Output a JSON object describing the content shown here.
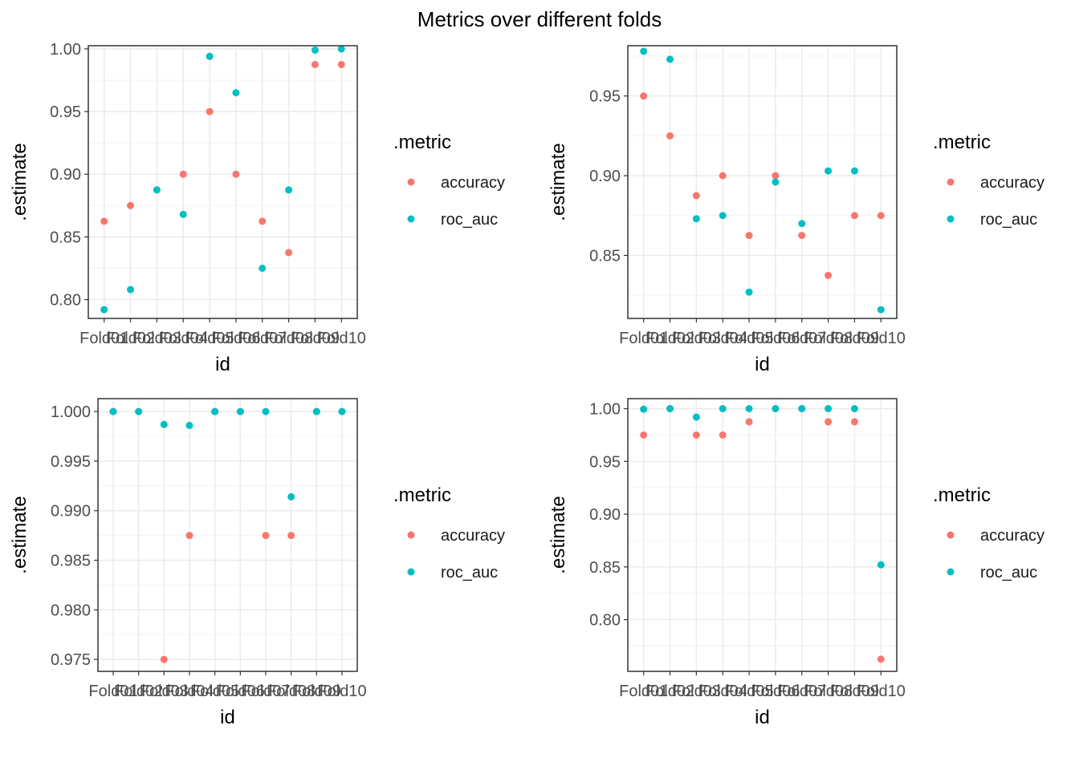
{
  "title": "Metrics over different folds",
  "colors": {
    "accuracy": "#F8766D",
    "roc_auc": "#00BFC4",
    "grid_major": "#EBEBEB",
    "grid_minor": "#F3F3F3",
    "panel_border": "#333333"
  },
  "chart_data": [
    {
      "type": "scatter",
      "xlabel": "id",
      "ylabel": ".estimate",
      "categories": [
        "Fold01",
        "Fold02",
        "Fold03",
        "Fold04",
        "Fold05",
        "Fold06",
        "Fold07",
        "Fold08",
        "Fold09",
        "Fold10"
      ],
      "ylim": [
        0.785,
        1.0025
      ],
      "yticks": [
        0.8,
        0.85,
        0.9,
        0.95,
        1.0
      ],
      "ytick_labels": [
        "0.80",
        "0.85",
        "0.90",
        "0.95",
        "1.00"
      ],
      "legend_title": ".metric",
      "series": [
        {
          "name": "accuracy",
          "values": [
            0.8625,
            0.875,
            0.8875,
            0.9,
            0.95,
            0.9,
            0.8625,
            0.8375,
            0.9875,
            0.9875
          ]
        },
        {
          "name": "roc_auc",
          "values": [
            0.792,
            0.808,
            0.8875,
            0.868,
            0.994,
            0.965,
            0.825,
            0.8875,
            0.999,
            1.0
          ]
        }
      ]
    },
    {
      "type": "scatter",
      "xlabel": "id",
      "ylabel": ".estimate",
      "categories": [
        "Fold01",
        "Fold02",
        "Fold03",
        "Fold04",
        "Fold05",
        "Fold06",
        "Fold07",
        "Fold08",
        "Fold09",
        "Fold10"
      ],
      "ylim": [
        0.8105,
        0.9815
      ],
      "yticks": [
        0.85,
        0.9,
        0.95
      ],
      "ytick_labels": [
        "0.85",
        "0.90",
        "0.95"
      ],
      "legend_title": ".metric",
      "series": [
        {
          "name": "accuracy",
          "values": [
            0.95,
            0.925,
            0.8875,
            0.9,
            0.8625,
            0.9,
            0.8625,
            0.8375,
            0.875,
            0.875
          ]
        },
        {
          "name": "roc_auc",
          "values": [
            0.978,
            0.973,
            0.873,
            0.875,
            0.827,
            0.896,
            0.87,
            0.903,
            0.903,
            0.816
          ]
        }
      ]
    },
    {
      "type": "scatter",
      "xlabel": "id",
      "ylabel": ".estimate",
      "categories": [
        "Fold01",
        "Fold02",
        "Fold03",
        "Fold04",
        "Fold05",
        "Fold06",
        "Fold07",
        "Fold08",
        "Fold09",
        "Fold10"
      ],
      "ylim": [
        0.9738,
        1.0013
      ],
      "yticks": [
        0.975,
        0.98,
        0.985,
        0.99,
        0.995,
        1.0
      ],
      "ytick_labels": [
        "0.975",
        "0.980",
        "0.985",
        "0.990",
        "0.995",
        "1.000"
      ],
      "legend_title": ".metric",
      "series": [
        {
          "name": "accuracy",
          "values": [
            1.0,
            1.0,
            0.975,
            0.9875,
            1.0,
            1.0,
            0.9875,
            0.9875,
            1.0,
            1.0
          ]
        },
        {
          "name": "roc_auc",
          "values": [
            1.0,
            1.0,
            0.9987,
            0.9986,
            1.0,
            1.0,
            1.0,
            0.9914,
            1.0,
            1.0
          ]
        }
      ]
    },
    {
      "type": "scatter",
      "xlabel": "id",
      "ylabel": ".estimate",
      "categories": [
        "Fold01",
        "Fold02",
        "Fold03",
        "Fold04",
        "Fold05",
        "Fold06",
        "Fold07",
        "Fold08",
        "Fold09",
        "Fold10"
      ],
      "ylim": [
        0.751,
        1.0095
      ],
      "yticks": [
        0.8,
        0.85,
        0.9,
        0.95,
        1.0
      ],
      "ytick_labels": [
        "0.80",
        "0.85",
        "0.90",
        "0.95",
        "1.00"
      ],
      "legend_title": ".metric",
      "series": [
        {
          "name": "accuracy",
          "values": [
            0.975,
            1.0,
            0.975,
            0.975,
            0.9875,
            1.0,
            1.0,
            0.9875,
            0.9875,
            0.7625
          ]
        },
        {
          "name": "roc_auc",
          "values": [
            0.9995,
            1.0,
            0.992,
            1.0,
            1.0,
            1.0,
            1.0,
            1.0,
            1.0,
            0.852
          ]
        }
      ]
    }
  ]
}
